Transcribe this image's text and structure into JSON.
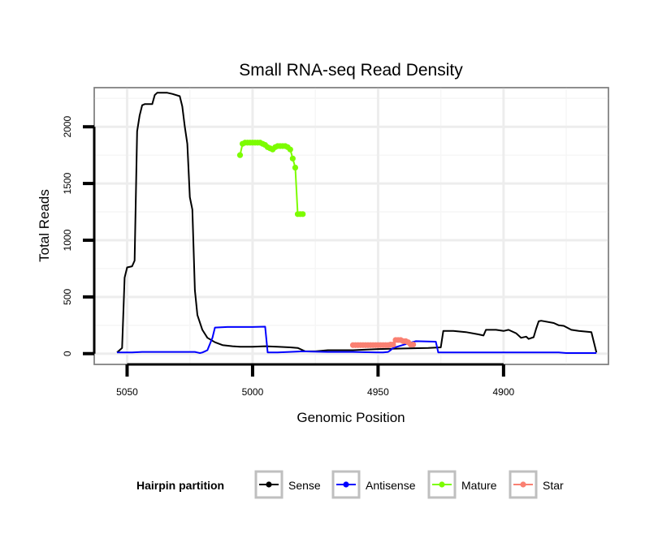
{
  "chart_data": {
    "type": "line",
    "title": "Small RNA-seq Read Density",
    "xlabel": "Genomic Position",
    "ylabel": "Total Reads",
    "xlim": [
      5063.1,
      4858.2
    ],
    "ylim": [
      -95,
      2345
    ],
    "x_reversed": true,
    "x_ticks": [
      5050,
      5000,
      4950,
      4900
    ],
    "x_tick_labels": [
      "5050",
      "5000",
      "4950",
      "4900"
    ],
    "y_ticks": [
      0,
      500,
      1000,
      1500,
      2000
    ],
    "y_tick_labels": [
      "0",
      "500",
      "1000",
      "1500",
      "2000"
    ],
    "grid": true,
    "legend": {
      "title": "Hairpin partition",
      "placement": "bottom",
      "entries": [
        {
          "name": "Sense",
          "color": "#000000"
        },
        {
          "name": "Antisense",
          "color": "#0000ff"
        },
        {
          "name": "Mature",
          "color": "#7cfc00"
        },
        {
          "name": "Star",
          "color": "#fa8072"
        }
      ]
    },
    "series": [
      {
        "name": "Sense",
        "color": "#000000",
        "markers": false,
        "x": [
          5054,
          5052,
          5051,
          5050,
          5048,
          5047,
          5046,
          5045,
          5044,
          5043,
          5040,
          5039,
          5038,
          5034,
          5032,
          5029,
          5028,
          5027,
          5026,
          5025,
          5024,
          5023,
          5022,
          5020,
          5018,
          5015,
          5012,
          5008,
          5005,
          5004,
          5003,
          5002,
          5001,
          5000,
          4995,
          4990,
          4985,
          4982,
          4980,
          4979,
          4978,
          4977,
          4976,
          4975,
          4970,
          4960,
          4950,
          4940,
          4930,
          4925,
          4924,
          4920,
          4915,
          4910,
          4908,
          4907,
          4903,
          4900,
          4898,
          4895,
          4893,
          4891,
          4890,
          4888,
          4887,
          4886,
          4885,
          4880,
          4878,
          4876,
          4873,
          4870,
          4865,
          4864,
          4863
        ],
        "values": [
          10,
          50,
          670,
          760,
          770,
          820,
          1960,
          2100,
          2190,
          2200,
          2200,
          2280,
          2300,
          2300,
          2290,
          2270,
          2180,
          2000,
          1850,
          1380,
          1270,
          560,
          340,
          210,
          140,
          100,
          75,
          65,
          60,
          60,
          60,
          60,
          60,
          60,
          65,
          60,
          55,
          50,
          30,
          20,
          20,
          20,
          20,
          20,
          30,
          30,
          40,
          45,
          50,
          55,
          200,
          200,
          190,
          170,
          160,
          210,
          210,
          200,
          210,
          180,
          140,
          150,
          130,
          145,
          220,
          285,
          290,
          270,
          250,
          245,
          210,
          200,
          190,
          100,
          10
        ]
      },
      {
        "name": "Antisense",
        "color": "#0000ff",
        "markers": false,
        "x": [
          5054,
          5048,
          5044,
          5040,
          5030,
          5024,
          5023,
          5022,
          5021,
          5020,
          5018,
          5016,
          5015,
          5010,
          5000,
          4995,
          4994,
          4990,
          4980,
          4970,
          4960,
          4950,
          4948,
          4946,
          4945,
          4944,
          4935,
          4927,
          4926,
          4922,
          4915,
          4900,
          4885,
          4878,
          4875,
          4870,
          4865,
          4863
        ],
        "values": [
          10,
          10,
          15,
          15,
          15,
          15,
          15,
          10,
          5,
          10,
          30,
          140,
          230,
          235,
          235,
          238,
          10,
          10,
          20,
          15,
          15,
          10,
          10,
          15,
          30,
          50,
          110,
          105,
          10,
          10,
          10,
          10,
          10,
          10,
          5,
          5,
          5,
          5
        ]
      },
      {
        "name": "Mature",
        "color": "#7cfc00",
        "markers": true,
        "x": [
          5005,
          5004,
          5003,
          5002,
          5001,
          5000,
          4999,
          4998,
          4997,
          4996,
          4995,
          4994,
          4993,
          4992,
          4991,
          4990,
          4989,
          4988,
          4987,
          4986,
          4985,
          4984,
          4983,
          4982,
          4981,
          4980
        ],
        "values": [
          1750,
          1850,
          1860,
          1860,
          1860,
          1860,
          1860,
          1860,
          1860,
          1850,
          1840,
          1820,
          1810,
          1800,
          1820,
          1830,
          1830,
          1830,
          1830,
          1820,
          1800,
          1720,
          1640,
          1230,
          1230,
          1230
        ]
      },
      {
        "name": "Star",
        "color": "#fa8072",
        "markers": true,
        "x": [
          4960,
          4959,
          4958,
          4957,
          4956,
          4955,
          4954,
          4953,
          4952,
          4951,
          4950,
          4949,
          4948,
          4947,
          4946,
          4945,
          4944,
          4943,
          4942,
          4941,
          4940,
          4939,
          4938,
          4937,
          4936
        ],
        "values": [
          75,
          75,
          75,
          75,
          75,
          75,
          75,
          75,
          75,
          75,
          75,
          75,
          75,
          75,
          75,
          80,
          80,
          120,
          120,
          120,
          110,
          110,
          100,
          80,
          80
        ]
      }
    ]
  }
}
